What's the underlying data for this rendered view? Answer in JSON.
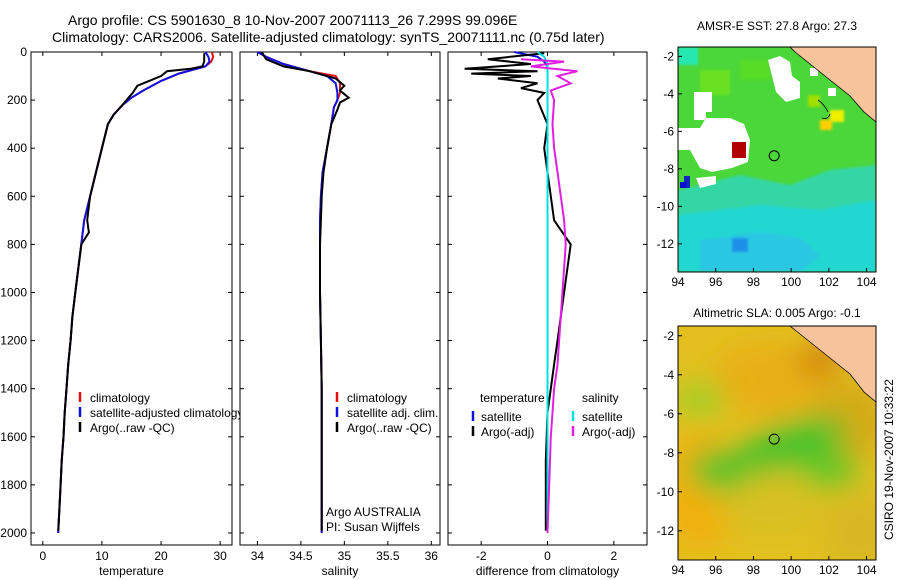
{
  "header": {
    "line1": "Argo profile: CS 5901630_8 10-Nov-2007 20071113_26 7.299S 99.096E",
    "line2": "Climatology: CARS2006. Satellite-adjusted climatology: synTS_20071111.nc (0.75d later)"
  },
  "stamp": "CSIRO 19-Nov-2007 10:33:22",
  "colors": {
    "clim": "#e01010",
    "sat": "#1010e0",
    "argo": "#000000",
    "sal_sat": "#00e0e0",
    "sal_argo": "#e020e0"
  },
  "chart_data": [
    {
      "type": "line",
      "name": "temperature-panel",
      "xlabel": "temperature",
      "xlim": [
        -2,
        32
      ],
      "ylim": [
        2050,
        0
      ],
      "xticks": [
        0,
        10,
        20,
        30
      ],
      "yticks": [
        0,
        200,
        400,
        600,
        800,
        1000,
        1200,
        1400,
        1600,
        1800,
        2000
      ],
      "legend": {
        "items": [
          "climatology",
          "satellite-adjusted climatology",
          "Argo(..raw -QC)"
        ]
      },
      "series": [
        {
          "name": "climatology",
          "color": "clim",
          "points": [
            [
              28.6,
              0
            ],
            [
              28.8,
              20
            ],
            [
              28.5,
              40
            ],
            [
              27.5,
              60
            ],
            [
              23,
              90
            ],
            [
              20,
              120
            ],
            [
              17,
              160
            ],
            [
              15,
              190
            ],
            [
              13.5,
              220
            ],
            [
              12,
              260
            ],
            [
              11,
              300
            ],
            [
              10,
              400
            ],
            [
              9,
              500
            ],
            [
              8,
              600
            ],
            [
              7,
              700
            ],
            [
              6.5,
              800
            ],
            [
              6,
              900
            ],
            [
              5.5,
              1000
            ],
            [
              5,
              1100
            ],
            [
              4.7,
              1200
            ],
            [
              4.3,
              1300
            ],
            [
              4,
              1400
            ],
            [
              3.7,
              1500
            ],
            [
              3.5,
              1600
            ],
            [
              3.2,
              1700
            ],
            [
              3,
              1800
            ],
            [
              2.8,
              1900
            ],
            [
              2.6,
              2000
            ]
          ]
        },
        {
          "name": "satellite-adjusted climatology",
          "color": "sat",
          "points": [
            [
              27.5,
              0
            ],
            [
              28,
              20
            ],
            [
              28.2,
              40
            ],
            [
              27.5,
              60
            ],
            [
              23,
              90
            ],
            [
              20,
              120
            ],
            [
              17,
              160
            ],
            [
              15,
              190
            ],
            [
              13.5,
              220
            ],
            [
              12,
              260
            ],
            [
              11,
              300
            ],
            [
              10,
              400
            ],
            [
              9,
              500
            ],
            [
              8,
              600
            ],
            [
              7,
              700
            ],
            [
              6.5,
              800
            ],
            [
              6,
              900
            ],
            [
              5.5,
              1000
            ],
            [
              5,
              1100
            ],
            [
              4.7,
              1200
            ],
            [
              4.3,
              1300
            ],
            [
              4,
              1400
            ],
            [
              3.7,
              1500
            ],
            [
              3.5,
              1600
            ],
            [
              3.2,
              1700
            ],
            [
              3,
              1800
            ],
            [
              2.8,
              1900
            ],
            [
              2.6,
              2000
            ]
          ]
        },
        {
          "name": "Argo(..raw -QC)",
          "color": "argo",
          "points": [
            [
              27.3,
              5
            ],
            [
              27.3,
              40
            ],
            [
              27,
              60
            ],
            [
              25,
              70
            ],
            [
              21,
              80
            ],
            [
              20,
              100
            ],
            [
              18,
              120
            ],
            [
              17,
              130
            ],
            [
              16,
              140
            ],
            [
              15.2,
              170
            ],
            [
              14.5,
              190
            ],
            [
              13.5,
              220
            ],
            [
              12,
              260
            ],
            [
              11,
              300
            ],
            [
              10,
              400
            ],
            [
              9,
              500
            ],
            [
              8,
              600
            ],
            [
              7.5,
              700
            ],
            [
              7.8,
              750
            ],
            [
              6.5,
              800
            ],
            [
              6,
              900
            ],
            [
              5.5,
              1000
            ],
            [
              5,
              1100
            ],
            [
              4.7,
              1200
            ],
            [
              4.3,
              1300
            ],
            [
              4,
              1400
            ],
            [
              3.7,
              1500
            ],
            [
              3.5,
              1600
            ],
            [
              3.2,
              1700
            ],
            [
              3,
              1800
            ],
            [
              2.8,
              1900
            ],
            [
              2.6,
              1990
            ]
          ]
        }
      ]
    },
    {
      "type": "line",
      "name": "salinity-panel",
      "xlabel": "salinity",
      "xlim": [
        33.8,
        36.1
      ],
      "ylim": [
        2050,
        0
      ],
      "xticks": [
        34,
        34.5,
        35,
        35.5,
        36
      ],
      "xticklabels": [
        "34",
        "34.5",
        "35",
        "35.5",
        "36"
      ],
      "legend": {
        "items": [
          "climatology",
          "satellite adj. clim.",
          "Argo(..raw -QC)"
        ]
      },
      "note": [
        "Argo AUSTRALIA",
        "PI: Susan Wijffels"
      ],
      "series": [
        {
          "name": "climatology",
          "color": "clim",
          "points": [
            [
              34.0,
              0
            ],
            [
              34.1,
              20
            ],
            [
              34.3,
              50
            ],
            [
              34.6,
              80
            ],
            [
              34.9,
              100
            ],
            [
              34.95,
              130
            ],
            [
              34.95,
              170
            ],
            [
              34.92,
              200
            ],
            [
              34.88,
              230
            ],
            [
              34.85,
              300
            ],
            [
              34.8,
              400
            ],
            [
              34.75,
              500
            ],
            [
              34.73,
              600
            ],
            [
              34.72,
              700
            ],
            [
              34.72,
              800
            ],
            [
              34.72,
              1000
            ],
            [
              34.73,
              1200
            ],
            [
              34.74,
              1400
            ],
            [
              34.74,
              1600
            ],
            [
              34.74,
              1800
            ],
            [
              34.74,
              2000
            ]
          ]
        },
        {
          "name": "satellite adj. clim.",
          "color": "sat",
          "points": [
            [
              34.0,
              0
            ],
            [
              34.1,
              20
            ],
            [
              34.3,
              50
            ],
            [
              34.6,
              80
            ],
            [
              34.8,
              100
            ],
            [
              34.9,
              130
            ],
            [
              34.92,
              170
            ],
            [
              34.92,
              200
            ],
            [
              34.88,
              230
            ],
            [
              34.85,
              300
            ],
            [
              34.8,
              400
            ],
            [
              34.75,
              500
            ],
            [
              34.73,
              600
            ],
            [
              34.72,
              700
            ],
            [
              34.72,
              800
            ],
            [
              34.72,
              1000
            ],
            [
              34.73,
              1200
            ],
            [
              34.74,
              1400
            ],
            [
              34.74,
              1600
            ],
            [
              34.74,
              1800
            ],
            [
              34.74,
              2000
            ]
          ]
        },
        {
          "name": "Argo(..raw -QC)",
          "color": "argo",
          "points": [
            [
              34.05,
              0
            ],
            [
              34.1,
              30
            ],
            [
              34.3,
              60
            ],
            [
              34.6,
              80
            ],
            [
              34.9,
              110
            ],
            [
              35.0,
              140
            ],
            [
              34.95,
              160
            ],
            [
              35.05,
              190
            ],
            [
              34.95,
              210
            ],
            [
              34.92,
              240
            ],
            [
              34.85,
              300
            ],
            [
              34.8,
              400
            ],
            [
              34.76,
              500
            ],
            [
              34.74,
              600
            ],
            [
              34.73,
              700
            ],
            [
              34.72,
              800
            ],
            [
              34.72,
              1000
            ],
            [
              34.73,
              1200
            ],
            [
              34.74,
              1400
            ],
            [
              34.74,
              1600
            ],
            [
              34.74,
              1800
            ],
            [
              34.74,
              1990
            ]
          ]
        }
      ]
    },
    {
      "type": "line",
      "name": "difference-panel",
      "xlabel": "difference from climatology",
      "xlim": [
        -3,
        3
      ],
      "ylim": [
        2050,
        0
      ],
      "xticks": [
        -2,
        0,
        2
      ],
      "legend_left": {
        "header": "temperature",
        "items": [
          "satellite",
          "Argo(-adj)"
        ]
      },
      "legend_right": {
        "header": "salinity",
        "items": [
          "satellite",
          "Argo(-adj)"
        ]
      },
      "series": [
        {
          "name": "temperature satellite",
          "color": "sat",
          "points": [
            [
              -1.0,
              0
            ],
            [
              -0.3,
              20
            ],
            [
              -0.1,
              40
            ],
            [
              0,
              60
            ],
            [
              0,
              100
            ],
            [
              0,
              200
            ],
            [
              0,
              400
            ],
            [
              0,
              600
            ],
            [
              0,
              800
            ],
            [
              0,
              1000
            ],
            [
              0,
              1500
            ],
            [
              0,
              2000
            ]
          ]
        },
        {
          "name": "temperature Argo(-adj)",
          "color": "argo",
          "points": [
            [
              -0.1,
              5
            ],
            [
              -1.8,
              30
            ],
            [
              -0.5,
              50
            ],
            [
              -2.5,
              70
            ],
            [
              -0.3,
              80
            ],
            [
              -2.3,
              90
            ],
            [
              -0.5,
              100
            ],
            [
              -1.5,
              110
            ],
            [
              -0.3,
              130
            ],
            [
              -0.8,
              150
            ],
            [
              -0.1,
              170
            ],
            [
              -0.3,
              200
            ],
            [
              0,
              300
            ],
            [
              -0.1,
              400
            ],
            [
              0,
              500
            ],
            [
              0.1,
              600
            ],
            [
              0.2,
              700
            ],
            [
              0.5,
              760
            ],
            [
              0.7,
              800
            ],
            [
              0.6,
              900
            ],
            [
              0.5,
              1000
            ],
            [
              0.4,
              1100
            ],
            [
              0.3,
              1200
            ],
            [
              0.2,
              1300
            ],
            [
              0.1,
              1400
            ],
            [
              0,
              1500
            ],
            [
              -0.05,
              1700
            ],
            [
              -0.05,
              1900
            ],
            [
              -0.05,
              1990
            ]
          ]
        },
        {
          "name": "salinity satellite",
          "color": "sal_sat",
          "points": [
            [
              -0.3,
              0
            ],
            [
              -0.1,
              20
            ],
            [
              0,
              50
            ],
            [
              0,
              100
            ],
            [
              0,
              200
            ],
            [
              0,
              500
            ],
            [
              0,
              1000
            ],
            [
              0,
              1500
            ],
            [
              0,
              2000
            ]
          ]
        },
        {
          "name": "salinity Argo(-adj)",
          "color": "sal_argo",
          "points": [
            [
              -0.8,
              30
            ],
            [
              0.5,
              40
            ],
            [
              -0.5,
              60
            ],
            [
              0.9,
              80
            ],
            [
              0.3,
              100
            ],
            [
              0.7,
              130
            ],
            [
              0.1,
              160
            ],
            [
              0.2,
              200
            ],
            [
              0.15,
              300
            ],
            [
              0.2,
              400
            ],
            [
              0.3,
              500
            ],
            [
              0.4,
              600
            ],
            [
              0.5,
              700
            ],
            [
              0.55,
              800
            ],
            [
              0.5,
              900
            ],
            [
              0.45,
              1000
            ],
            [
              0.4,
              1100
            ],
            [
              0.35,
              1200
            ],
            [
              0.3,
              1300
            ],
            [
              0.2,
              1400
            ],
            [
              0.15,
              1500
            ],
            [
              0.1,
              1600
            ],
            [
              0.05,
              1800
            ],
            [
              0,
              2000
            ]
          ]
        }
      ]
    },
    {
      "type": "heatmap",
      "name": "amsr-sst-map",
      "title": "AMSR-E SST: 27.8  Argo: 27.3",
      "xlim": [
        94,
        104.5
      ],
      "ylim": [
        -13.5,
        -1.5
      ],
      "xticks": [
        94,
        96,
        98,
        100,
        102,
        104
      ],
      "yticks": [
        -2,
        -4,
        -6,
        -8,
        -10,
        -12
      ],
      "argo_position": [
        99.1,
        -7.3
      ]
    },
    {
      "type": "heatmap",
      "name": "altimetric-sla-map",
      "title": "Altimetric SLA: 0.005  Argo: -0.1",
      "xlim": [
        94,
        104.5
      ],
      "ylim": [
        -13.5,
        -1.5
      ],
      "xticks": [
        94,
        96,
        98,
        100,
        102,
        104
      ],
      "yticks": [
        -2,
        -4,
        -6,
        -8,
        -10,
        -12
      ],
      "argo_position": [
        99.1,
        -7.3
      ]
    }
  ]
}
